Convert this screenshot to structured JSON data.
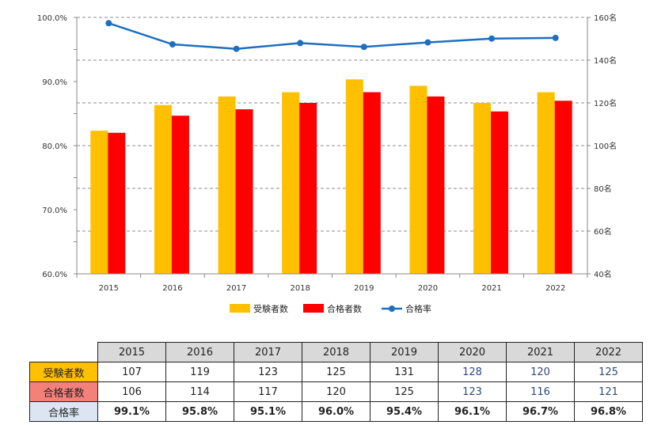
{
  "chart_data": {
    "type": "bar",
    "categories": [
      "2015",
      "2016",
      "2017",
      "2018",
      "2019",
      "2020",
      "2021",
      "2022"
    ],
    "series": [
      {
        "name": "受験者数",
        "type": "bar",
        "axis": "right",
        "color": "#ffc000",
        "values": [
          107,
          119,
          123,
          125,
          131,
          128,
          120,
          125
        ]
      },
      {
        "name": "合格者数",
        "type": "bar",
        "axis": "right",
        "color": "#ff0000",
        "values": [
          106,
          114,
          117,
          120,
          125,
          123,
          116,
          121
        ]
      },
      {
        "name": "合格率",
        "type": "line",
        "axis": "left",
        "color": "#1f6fbf",
        "values": [
          99.1,
          95.8,
          95.1,
          96.0,
          95.4,
          96.1,
          96.7,
          96.8
        ]
      }
    ],
    "left_axis": {
      "ylim": [
        60,
        100
      ],
      "ticks": [
        "60.0%",
        "70.0%",
        "80.0%",
        "90.0%",
        "100.0%"
      ]
    },
    "right_axis": {
      "ylim": [
        40,
        160
      ],
      "ticks": [
        "40名",
        "60名",
        "80名",
        "100名",
        "120名",
        "140名",
        "160名"
      ]
    },
    "grid": "dashed-horizontal",
    "legend_position": "bottom"
  },
  "table": {
    "header": [
      "2015",
      "2016",
      "2017",
      "2018",
      "2019",
      "2020",
      "2021",
      "2022"
    ],
    "rows": [
      {
        "label": "受験者数",
        "bg": "#ffc000",
        "cells": [
          "107",
          "119",
          "123",
          "125",
          "131",
          "128",
          "120",
          "125"
        ]
      },
      {
        "label": "合格者数",
        "bg": "#f4807a",
        "cells": [
          "106",
          "114",
          "117",
          "120",
          "125",
          "123",
          "116",
          "121"
        ]
      },
      {
        "label": "合格率",
        "bg": "#dce6f2",
        "cells": [
          "99.1%",
          "95.8%",
          "95.1%",
          "96.0%",
          "95.4%",
          "96.1%",
          "96.7%",
          "96.8%"
        ]
      }
    ]
  }
}
